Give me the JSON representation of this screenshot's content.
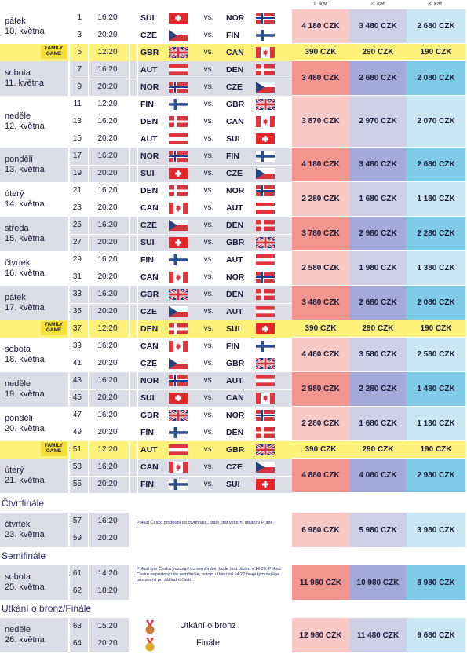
{
  "headers": [
    "1. kat.",
    "2. kat.",
    "3. kat."
  ],
  "family_label": [
    "FAMILY",
    "GAME"
  ],
  "colors": {
    "gray_band": "#dcdce6",
    "family_band": "#fff27a",
    "cat1": "#f9c9c5",
    "cat2": "#cfd0e5",
    "cat3": "#c8e7f3"
  },
  "flags": {
    "SUI": "swiss",
    "NOR": "nordic-red-blue",
    "CZE": "czech",
    "FIN": "nordic-blue",
    "GBR": "union-jack",
    "CAN": "maple",
    "AUT": "austria",
    "DEN": "nordic-red-white"
  },
  "days": [
    {
      "day": "pátek",
      "date": "10. května",
      "bg": "white",
      "price_tone": "light",
      "family": false,
      "matches": [
        {
          "n": "1",
          "t": "16:20",
          "a": "SUI",
          "b": "NOR"
        },
        {
          "n": "3",
          "t": "20:20",
          "a": "CZE",
          "b": "FIN"
        }
      ],
      "prices": [
        "4 180 CZK",
        "3 480 CZK",
        "2 680 CZK"
      ]
    },
    {
      "day": "",
      "date": "",
      "bg": "fam",
      "price_tone": "fam",
      "family": true,
      "matches": [
        {
          "n": "5",
          "t": "12:20",
          "a": "GBR",
          "b": "CAN"
        }
      ],
      "prices": [
        "390 CZK",
        "290 CZK",
        "190 CZK"
      ]
    },
    {
      "day": "sobota",
      "date": "11. května",
      "bg": "gray",
      "price_tone": "dark",
      "family": false,
      "matches": [
        {
          "n": "7",
          "t": "16:20",
          "a": "AUT",
          "b": "DEN"
        },
        {
          "n": "9",
          "t": "20:20",
          "a": "NOR",
          "b": "CZE"
        }
      ],
      "prices": [
        "3 480 CZK",
        "2 680 CZK",
        "2 080 CZK"
      ]
    },
    {
      "day": "neděle",
      "date": "12. května",
      "bg": "white",
      "price_tone": "light",
      "family": false,
      "matches": [
        {
          "n": "11",
          "t": "12:20",
          "a": "FIN",
          "b": "GBR"
        },
        {
          "n": "13",
          "t": "16:20",
          "a": "DEN",
          "b": "CAN"
        },
        {
          "n": "15",
          "t": "20:20",
          "a": "AUT",
          "b": "SUI"
        }
      ],
      "prices": [
        "3 870 CZK",
        "2 970 CZK",
        "2 070 CZK"
      ]
    },
    {
      "day": "pondělí",
      "date": "13. května",
      "bg": "gray",
      "price_tone": "dark",
      "family": false,
      "matches": [
        {
          "n": "17",
          "t": "16:20",
          "a": "NOR",
          "b": "FIN"
        },
        {
          "n": "19",
          "t": "20:20",
          "a": "SUI",
          "b": "CZE"
        }
      ],
      "prices": [
        "4 180 CZK",
        "3 480 CZK",
        "2 680 CZK"
      ]
    },
    {
      "day": "úterý",
      "date": "14. května",
      "bg": "white",
      "price_tone": "light",
      "family": false,
      "matches": [
        {
          "n": "21",
          "t": "16:20",
          "a": "DEN",
          "b": "NOR"
        },
        {
          "n": "23",
          "t": "20:20",
          "a": "CAN",
          "b": "AUT"
        }
      ],
      "prices": [
        "2 280 CZK",
        "1 680 CZK",
        "1 180 CZK"
      ]
    },
    {
      "day": "středa",
      "date": "15. května",
      "bg": "gray",
      "price_tone": "dark",
      "family": false,
      "matches": [
        {
          "n": "25",
          "t": "16:20",
          "a": "CZE",
          "b": "DEN"
        },
        {
          "n": "27",
          "t": "20:20",
          "a": "SUI",
          "b": "GBR"
        }
      ],
      "prices": [
        "3 780 CZK",
        "2 980 CZK",
        "2 280 CZK"
      ]
    },
    {
      "day": "čtvrtek",
      "date": "16. května",
      "bg": "white",
      "price_tone": "light",
      "family": false,
      "matches": [
        {
          "n": "29",
          "t": "16:20",
          "a": "FIN",
          "b": "AUT"
        },
        {
          "n": "31",
          "t": "20:20",
          "a": "CAN",
          "b": "NOR"
        }
      ],
      "prices": [
        "2 580 CZK",
        "1 980 CZK",
        "1 380 CZK"
      ]
    },
    {
      "day": "pátek",
      "date": "17. května",
      "bg": "gray",
      "price_tone": "dark",
      "family": false,
      "matches": [
        {
          "n": "33",
          "t": "16:20",
          "a": "GBR",
          "b": "DEN"
        },
        {
          "n": "35",
          "t": "20:20",
          "a": "CZE",
          "b": "AUT"
        }
      ],
      "prices": [
        "3 480 CZK",
        "2 680 CZK",
        "2 080 CZK"
      ]
    },
    {
      "day": "",
      "date": "",
      "bg": "fam",
      "price_tone": "fam",
      "family": true,
      "matches": [
        {
          "n": "37",
          "t": "12:20",
          "a": "DEN",
          "b": "SUI"
        }
      ],
      "prices": [
        "390 CZK",
        "290 CZK",
        "190 CZK"
      ]
    },
    {
      "day": "sobota",
      "date": "18. května",
      "bg": "white",
      "price_tone": "light",
      "family": false,
      "matches": [
        {
          "n": "39",
          "t": "16:20",
          "a": "CAN",
          "b": "FIN"
        },
        {
          "n": "41",
          "t": "20:20",
          "a": "CZE",
          "b": "GBR"
        }
      ],
      "prices": [
        "4 480 CZK",
        "3 580 CZK",
        "2 580 CZK"
      ]
    },
    {
      "day": "neděle",
      "date": "19. května",
      "bg": "gray",
      "price_tone": "dark",
      "family": false,
      "matches": [
        {
          "n": "43",
          "t": "16:20",
          "a": "NOR",
          "b": "AUT"
        },
        {
          "n": "45",
          "t": "20:20",
          "a": "SUI",
          "b": "CAN"
        }
      ],
      "prices": [
        "2 980 CZK",
        "2 280 CZK",
        "1 480 CZK"
      ]
    },
    {
      "day": "pondělí",
      "date": "20. května",
      "bg": "white",
      "price_tone": "light",
      "family": false,
      "matches": [
        {
          "n": "47",
          "t": "16:20",
          "a": "GBR",
          "b": "NOR"
        },
        {
          "n": "49",
          "t": "20:20",
          "a": "FIN",
          "b": "DEN"
        }
      ],
      "prices": [
        "2 280 CZK",
        "1 680 CZK",
        "1 180 CZK"
      ]
    },
    {
      "day": "",
      "date": "",
      "bg": "fam",
      "price_tone": "fam",
      "family": true,
      "matches": [
        {
          "n": "51",
          "t": "12:20",
          "a": "AUT",
          "b": "GBR"
        }
      ],
      "prices": [
        "390 CZK",
        "290 CZK",
        "190 CZK"
      ]
    },
    {
      "day": "úterý",
      "date": "21. května",
      "bg": "gray",
      "price_tone": "dark",
      "family": false,
      "matches": [
        {
          "n": "53",
          "t": "16:20",
          "a": "CAN",
          "b": "CZE"
        },
        {
          "n": "55",
          "t": "20:20",
          "a": "FIN",
          "b": "SUI"
        }
      ],
      "prices": [
        "4 880 CZK",
        "4 080 CZK",
        "2 980 CZK"
      ]
    }
  ],
  "vs": "vs.",
  "quarter": {
    "title": "Čtvrtfinále",
    "day": "čtvrtek",
    "date": "23. května",
    "matches": [
      {
        "n": "57",
        "t": "16:20"
      },
      {
        "n": "59",
        "t": "20:20"
      }
    ],
    "note": "Pokud Česko postoupí do čtvrtfinále, bude hrát večerní utkání v Praze.",
    "prices": [
      "6 980 CZK",
      "5 980 CZK",
      "3 980 CZK"
    ]
  },
  "semi": {
    "title": "Semifinále",
    "day": "sobota",
    "date": "25. května",
    "matches": [
      {
        "n": "61",
        "t": "14:20"
      },
      {
        "n": "62",
        "t": "18:20"
      }
    ],
    "note": "Pokud tým Česka postoupí do semifinále, bude hrát utkání v 14:20. Pokud Česko nepostoupí do semifinále, potom utkání od 14:20 hraje tým nejlépe postavený po základní části.",
    "prices": [
      "11 980 CZK",
      "10 980 CZK",
      "8 980 CZK"
    ]
  },
  "final": {
    "title": "Utkání o bronz/Finále",
    "day": "neděle",
    "date": "26. května",
    "matches": [
      {
        "n": "63",
        "t": "15:20",
        "label": "Utkání o bronz",
        "medal": "bronze-medal-icon"
      },
      {
        "n": "64",
        "t": "20:20",
        "label": "Finále",
        "medal": "gold-medal-icon"
      }
    ],
    "prices": [
      "12 980 CZK",
      "11 480 CZK",
      "9 680 CZK"
    ]
  }
}
